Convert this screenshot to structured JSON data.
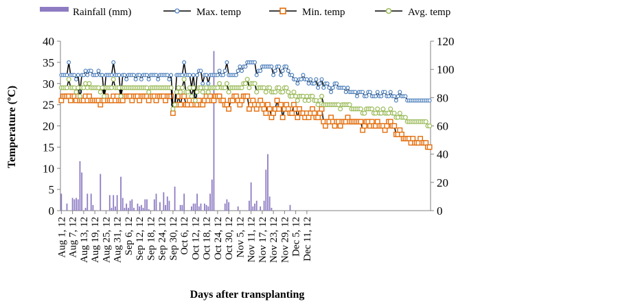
{
  "chart_data": {
    "type": "line",
    "xlabel": "Days after transplanting",
    "ylabel": "Temperature (ºC)",
    "y2label": "",
    "ylim": [
      0,
      40
    ],
    "y2lim": [
      0,
      120
    ],
    "yticks": [
      "0",
      "5",
      "10",
      "15",
      "20",
      "25",
      "30",
      "35",
      "40"
    ],
    "y2ticks": [
      "0",
      "20",
      "40",
      "60",
      "80",
      "100",
      "120"
    ],
    "x_tick_labels": [
      "Aug 1, 12",
      "Aug 7, 12",
      "Aug 13, 12",
      "Aug 19, 12",
      "Aug 25, 12",
      "Aug 31, 12",
      "Sep 6, 12",
      "Sep 12, 12",
      "Sep 18, 12",
      "Sep 24, 12",
      "Sep 30, 12",
      "Oct 6, 12",
      "Oct 12, 12",
      "Oct 18, 12",
      "Oct 24, 12",
      "Oct 30, 12",
      "Nov 5, 12",
      "Nov 11, 12",
      "Nov 17, 12",
      "Nov 23, 12",
      "Nov 29, 12",
      "Dec 5, 12",
      "Dec 11, 12"
    ],
    "legend_position": "top",
    "grid": false,
    "series": [
      {
        "name": "Rainfall (mm)",
        "kind": "bar",
        "axis": "right",
        "color": "#8e7cc3",
        "values": [
          12,
          0,
          0,
          5,
          0,
          0,
          9,
          8,
          9,
          8,
          35,
          27,
          0,
          2,
          12,
          0,
          12,
          4,
          0,
          0,
          0,
          26,
          0,
          0,
          0,
          0,
          11,
          2,
          11,
          3,
          11,
          0,
          24,
          9,
          2,
          5,
          2,
          7,
          8,
          2,
          0,
          5,
          3,
          4,
          2,
          8,
          8,
          1,
          0,
          0,
          8,
          12,
          0,
          6,
          0,
          13,
          4,
          10,
          7,
          0,
          0,
          17,
          0,
          0,
          4,
          4,
          12,
          0,
          0,
          0,
          3,
          5,
          5,
          12,
          3,
          5,
          0,
          5,
          4,
          3,
          12,
          22,
          113,
          0,
          0,
          0,
          0,
          0,
          5,
          8,
          6,
          0,
          0,
          0,
          0,
          3,
          0,
          0,
          0,
          0,
          0,
          7,
          20,
          3,
          5,
          7,
          0,
          3,
          0,
          7,
          29,
          40,
          10,
          2,
          0,
          0,
          0,
          0,
          0,
          0,
          0,
          0,
          0,
          4,
          0,
          0,
          0,
          0,
          0,
          0,
          0,
          0,
          0,
          0,
          0,
          0,
          0,
          0,
          0,
          0,
          0,
          0,
          0,
          0,
          0,
          0,
          0,
          0,
          0,
          0,
          0,
          0,
          0,
          0,
          0,
          0,
          0,
          0,
          0,
          0,
          0,
          0,
          0,
          0,
          0,
          0,
          0,
          0,
          0,
          0,
          0,
          0,
          0,
          0,
          0,
          0,
          0,
          0,
          0,
          0,
          0,
          0,
          0,
          0,
          0,
          0,
          0,
          0,
          0,
          0,
          0,
          0,
          0,
          0,
          0,
          0,
          0,
          0,
          0,
          0,
          0
        ]
      },
      {
        "name": "Max. temp",
        "kind": "line",
        "axis": "left",
        "color": "#000000",
        "marker_color": "#4f81bd",
        "values": [
          32,
          32,
          32,
          32,
          35,
          32,
          32,
          32,
          31,
          32,
          28,
          32,
          32,
          33,
          32,
          33,
          33,
          32,
          32,
          32,
          33,
          32,
          32,
          27,
          32,
          32,
          32,
          32,
          35,
          32,
          32,
          32,
          27,
          32,
          32,
          31,
          32,
          32,
          32,
          32,
          31,
          32,
          32,
          31,
          32,
          32,
          32,
          31,
          32,
          32,
          32,
          32,
          31,
          32,
          32,
          32,
          32,
          32,
          31,
          32,
          25,
          25,
          32,
          32,
          32,
          32,
          35,
          32,
          32,
          32,
          29,
          32,
          27,
          32,
          33,
          33,
          30,
          32,
          32,
          30,
          32,
          32,
          32,
          32,
          32,
          33,
          32,
          32,
          33,
          35,
          32,
          32,
          32,
          32,
          32,
          33,
          34,
          33,
          34,
          34,
          35,
          35,
          35,
          35,
          35,
          32,
          33,
          33,
          34,
          34,
          34,
          34,
          34,
          34,
          32,
          33,
          34,
          34,
          32,
          33,
          34,
          34,
          33,
          32,
          32,
          31,
          31,
          30,
          31,
          31,
          32,
          31,
          31,
          30,
          31,
          30,
          30,
          31,
          29,
          30,
          31,
          29,
          30,
          30,
          29,
          28,
          29,
          30,
          30,
          29,
          29,
          29,
          29,
          28,
          29,
          28,
          28,
          28,
          28,
          27,
          28,
          28,
          28,
          27,
          27,
          28,
          28,
          27,
          27,
          27,
          28,
          27,
          27,
          28,
          28,
          27,
          27,
          28,
          27,
          27,
          26,
          27,
          28,
          27,
          27,
          27,
          26,
          26,
          26,
          26,
          26,
          26,
          26,
          26,
          26,
          26,
          26,
          26,
          26
        ]
      },
      {
        "name": "Min. temp",
        "kind": "line",
        "axis": "left",
        "color": "#000000",
        "marker_color": "#e36c0a",
        "values": [
          26,
          27,
          27,
          27,
          27,
          26,
          27,
          27,
          26,
          27,
          26,
          26,
          26,
          27,
          26,
          27,
          26,
          26,
          26,
          26,
          26,
          25,
          26,
          26,
          27,
          26,
          26,
          26,
          27,
          26,
          27,
          26,
          26,
          26,
          27,
          27,
          27,
          27,
          26,
          27,
          27,
          27,
          26,
          27,
          27,
          27,
          27,
          26,
          27,
          27,
          27,
          26,
          27,
          27,
          27,
          27,
          26,
          27,
          27,
          27,
          23,
          25,
          25,
          27,
          25,
          27,
          27,
          25,
          25,
          26,
          25,
          26,
          25,
          25,
          26,
          25,
          25,
          26,
          27,
          26,
          27,
          26,
          26,
          27,
          27,
          27,
          26,
          26,
          25,
          25,
          24,
          26,
          26,
          27,
          27,
          26,
          25,
          26,
          27,
          27,
          27,
          24,
          25,
          26,
          25,
          24,
          25,
          26,
          25,
          24,
          23,
          25,
          24,
          22,
          23,
          24,
          26,
          24,
          25,
          22,
          24,
          25,
          24,
          23,
          23,
          25,
          24,
          22,
          24,
          23,
          23,
          22,
          23,
          22,
          23,
          24,
          23,
          22,
          22,
          23,
          24,
          21,
          20,
          21,
          21,
          22,
          21,
          20,
          21,
          21,
          20,
          21,
          21,
          21,
          22,
          21,
          21,
          21,
          21,
          21,
          21,
          21,
          19,
          20,
          21,
          21,
          20,
          21,
          20,
          20,
          21,
          20,
          20,
          20,
          19,
          20,
          21,
          21,
          20,
          20,
          18,
          18,
          19,
          18,
          17,
          17,
          17,
          17,
          16,
          17,
          16,
          16,
          16,
          17,
          16,
          16,
          16,
          15,
          15
        ]
      },
      {
        "name": "Avg. temp",
        "kind": "line",
        "axis": "left",
        "color": "#000000",
        "marker_color": "#9bbb59",
        "values": [
          29,
          29,
          29,
          29,
          31,
          29,
          29,
          29,
          28,
          29,
          27,
          29,
          29,
          30,
          29,
          30,
          29,
          29,
          29,
          29,
          29,
          28,
          29,
          27,
          29,
          29,
          29,
          29,
          31,
          29,
          29,
          29,
          27,
          29,
          29,
          29,
          29,
          29,
          29,
          29,
          29,
          29,
          29,
          29,
          29,
          29,
          29,
          28,
          29,
          29,
          29,
          29,
          29,
          29,
          29,
          29,
          29,
          29,
          29,
          29,
          24,
          25,
          28,
          29,
          28,
          29,
          31,
          28,
          28,
          29,
          27,
          29,
          26,
          28,
          29,
          29,
          28,
          29,
          29,
          28,
          29,
          29,
          29,
          29,
          29,
          30,
          29,
          29,
          29,
          30,
          28,
          29,
          29,
          29,
          29,
          29,
          29,
          29,
          30,
          30,
          31,
          29,
          30,
          30,
          30,
          28,
          29,
          29,
          29,
          29,
          28,
          29,
          29,
          28,
          28,
          28,
          29,
          29,
          28,
          28,
          29,
          29,
          28,
          27,
          27,
          28,
          27,
          26,
          27,
          27,
          27,
          26,
          27,
          26,
          27,
          27,
          26,
          26,
          25,
          26,
          27,
          25,
          25,
          25,
          25,
          25,
          25,
          25,
          25,
          25,
          24,
          25,
          25,
          25,
          25,
          25,
          24,
          24,
          24,
          24,
          24,
          24,
          23,
          23,
          24,
          24,
          24,
          24,
          23,
          23,
          24,
          23,
          23,
          24,
          23,
          23,
          23,
          24,
          23,
          23,
          22,
          22,
          23,
          22,
          22,
          22,
          21,
          21,
          21,
          21,
          21,
          21,
          21,
          21,
          21,
          21,
          21,
          20,
          20
        ]
      }
    ]
  }
}
